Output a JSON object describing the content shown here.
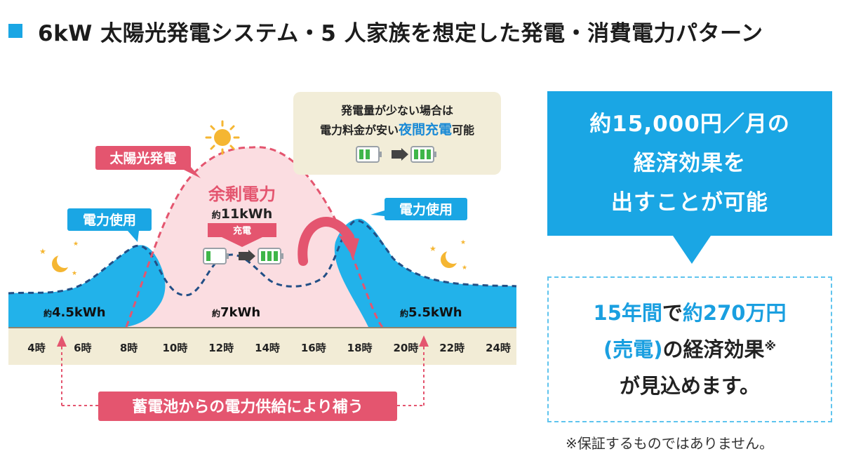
{
  "title": "6kW 太陽光発電システム・5 人家族を想定した発電・消費電力パターン",
  "chart_data": {
    "type": "area",
    "x_ticks": [
      "4時",
      "6時",
      "8時",
      "10時",
      "12時",
      "14時",
      "16時",
      "18時",
      "20時",
      "22時",
      "24時"
    ],
    "series": [
      {
        "name": "太陽光発電",
        "style": "dashed pink line with pink fill"
      },
      {
        "name": "電力使用",
        "style": "blue area with dashed navy outline"
      }
    ],
    "labels": {
      "solar": "太陽光発電",
      "usage_left": "電力使用",
      "usage_right": "電力使用",
      "surplus_title": "余剰電力",
      "surplus_prefix": "約",
      "surplus_value": "11kWh",
      "charge": "充電",
      "morning_prefix": "約",
      "morning_value": "4.5kWh",
      "day_prefix": "約",
      "day_value": "7kWh",
      "evening_prefix": "約",
      "evening_value": "5.5kWh",
      "battery_supply": "蓄電池からの電力供給により補う"
    },
    "note_box": {
      "line1": "発電量が少ない場合は",
      "line2_pre": "電力料金が安い",
      "line2_highlight": "夜間充電",
      "line2_post": "可能"
    }
  },
  "panel": {
    "line1": "約15,000円／月の",
    "line2": "経済効果を",
    "line3": "出すことが可能"
  },
  "result": {
    "line1_a": "15年間",
    "line1_b": "で",
    "line1_c": "約270万円",
    "line2_a": "(売電)",
    "line2_b": "の経済効果",
    "line2_mark": "※",
    "line3": "が見込めます。"
  },
  "footnote": "※保証するものではありません。",
  "colors": {
    "accent_blue": "#1aa6e4",
    "usage_fill": "#22b2ea",
    "solar_pink": "#e4556f",
    "solar_fill": "#fbdde1",
    "axis_band": "#f2ecd6",
    "note_bg": "#f2edd8"
  }
}
